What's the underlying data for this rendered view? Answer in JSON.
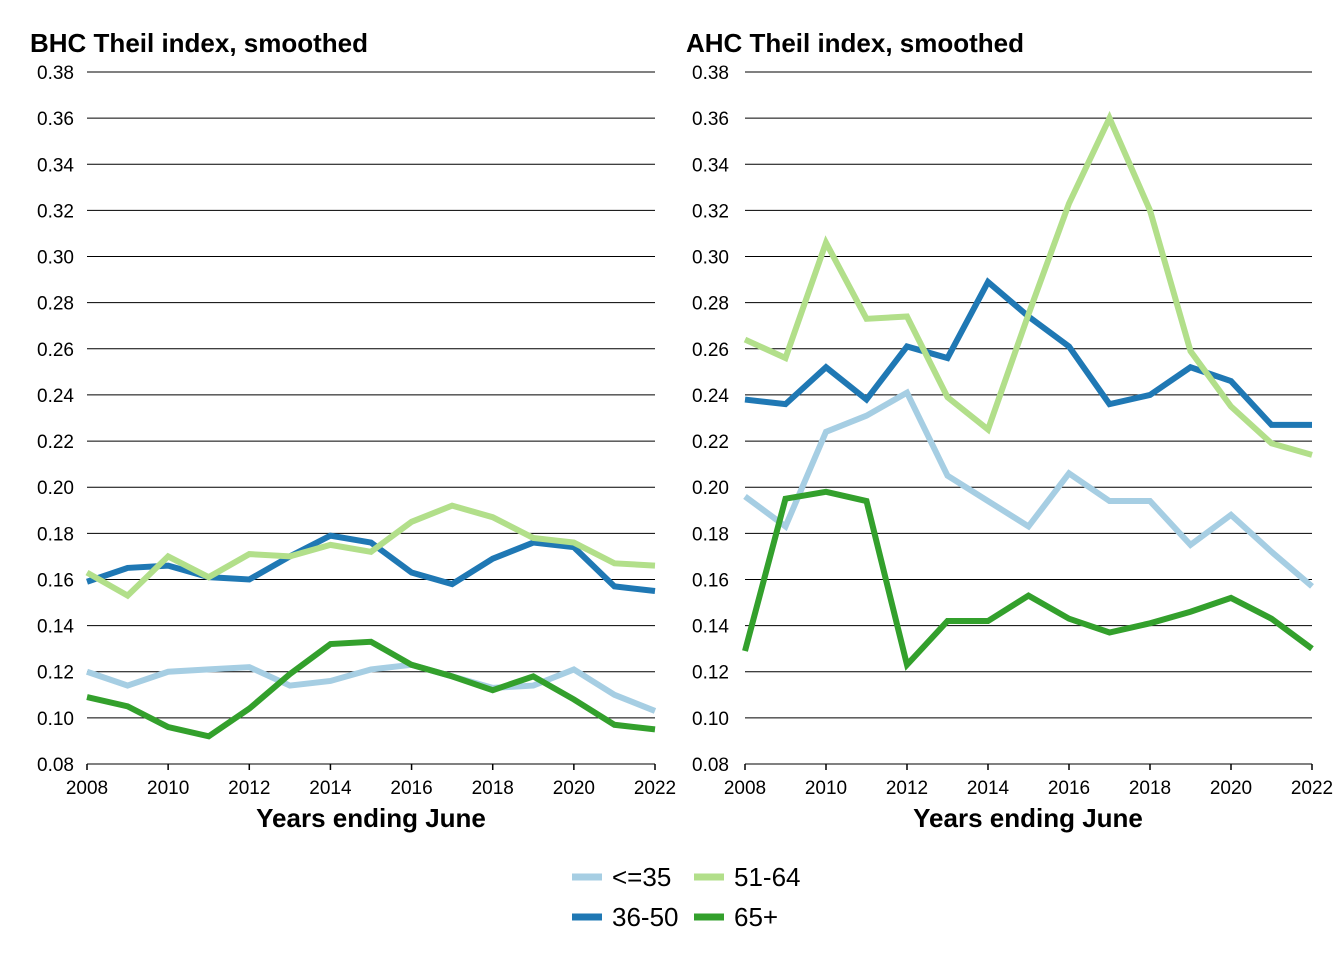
{
  "chart_data": [
    {
      "type": "line",
      "title": "BHC Theil index, smoothed",
      "xlabel": "Years ending June",
      "ylabel": "",
      "xlim": [
        2008,
        2022
      ],
      "ylim": [
        0.08,
        0.38
      ],
      "grid": true,
      "x": [
        2008,
        2009,
        2010,
        2011,
        2012,
        2013,
        2014,
        2015,
        2016,
        2017,
        2018,
        2019,
        2020,
        2021,
        2022
      ],
      "xticks": [
        "2008",
        "2010",
        "2012",
        "2014",
        "2016",
        "2018",
        "2020",
        "2022"
      ],
      "yticks": [
        "0.08",
        "0.10",
        "0.12",
        "0.14",
        "0.16",
        "0.18",
        "0.20",
        "0.22",
        "0.24",
        "0.26",
        "0.28",
        "0.30",
        "0.32",
        "0.34",
        "0.36",
        "0.38"
      ],
      "series": [
        {
          "name": "<=35",
          "color": "#a6cee3",
          "values": [
            0.12,
            0.114,
            0.12,
            0.121,
            0.122,
            0.114,
            0.116,
            0.121,
            0.123,
            0.118,
            0.113,
            0.114,
            0.121,
            0.11,
            0.103
          ]
        },
        {
          "name": "36-50",
          "color": "#1f78b4",
          "values": [
            0.159,
            0.165,
            0.166,
            0.161,
            0.16,
            0.17,
            0.179,
            0.176,
            0.163,
            0.158,
            0.169,
            0.176,
            0.174,
            0.157,
            0.155
          ]
        },
        {
          "name": "51-64",
          "color": "#b2df8a",
          "values": [
            0.163,
            0.153,
            0.17,
            0.161,
            0.171,
            0.17,
            0.175,
            0.172,
            0.185,
            0.192,
            0.187,
            0.178,
            0.176,
            0.167,
            0.166
          ]
        },
        {
          "name": "65+",
          "color": "#33a02c",
          "values": [
            0.109,
            0.105,
            0.096,
            0.092,
            0.104,
            0.119,
            0.132,
            0.133,
            0.123,
            0.118,
            0.112,
            0.118,
            0.108,
            0.097,
            0.095
          ]
        }
      ]
    },
    {
      "type": "line",
      "title": "AHC Theil index, smoothed",
      "xlabel": "Years ending June",
      "ylabel": "",
      "xlim": [
        2008,
        2022
      ],
      "ylim": [
        0.08,
        0.38
      ],
      "grid": true,
      "x": [
        2008,
        2009,
        2010,
        2011,
        2012,
        2013,
        2014,
        2015,
        2016,
        2017,
        2018,
        2019,
        2020,
        2021,
        2022
      ],
      "xticks": [
        "2008",
        "2010",
        "2012",
        "2014",
        "2016",
        "2018",
        "2020",
        "2022"
      ],
      "yticks": [
        "0.08",
        "0.10",
        "0.12",
        "0.14",
        "0.16",
        "0.18",
        "0.20",
        "0.22",
        "0.24",
        "0.26",
        "0.28",
        "0.30",
        "0.32",
        "0.34",
        "0.36",
        "0.38"
      ],
      "series": [
        {
          "name": "<=35",
          "color": "#a6cee3",
          "values": [
            0.196,
            0.183,
            0.224,
            0.231,
            0.241,
            0.205,
            0.194,
            0.183,
            0.206,
            0.194,
            0.194,
            0.175,
            0.188,
            0.172,
            0.157
          ]
        },
        {
          "name": "36-50",
          "color": "#1f78b4",
          "values": [
            0.238,
            0.236,
            0.252,
            0.238,
            0.261,
            0.256,
            0.289,
            0.274,
            0.261,
            0.236,
            0.24,
            0.252,
            0.246,
            0.227,
            0.227
          ]
        },
        {
          "name": "51-64",
          "color": "#b2df8a",
          "values": [
            0.264,
            0.256,
            0.306,
            0.273,
            0.274,
            0.239,
            0.225,
            0.275,
            0.323,
            0.36,
            0.32,
            0.259,
            0.235,
            0.219,
            0.214
          ]
        },
        {
          "name": "65+",
          "color": "#33a02c",
          "values": [
            0.129,
            0.195,
            0.198,
            0.194,
            0.123,
            0.142,
            0.142,
            0.153,
            0.143,
            0.137,
            0.141,
            0.146,
            0.152,
            0.143,
            0.13
          ]
        }
      ]
    }
  ],
  "legend": {
    "placement": "bottom-center",
    "items": [
      {
        "label": "<=35",
        "color": "#a6cee3"
      },
      {
        "label": "51-64",
        "color": "#b2df8a"
      },
      {
        "label": "36-50",
        "color": "#1f78b4"
      },
      {
        "label": "65+",
        "color": "#33a02c"
      }
    ]
  }
}
